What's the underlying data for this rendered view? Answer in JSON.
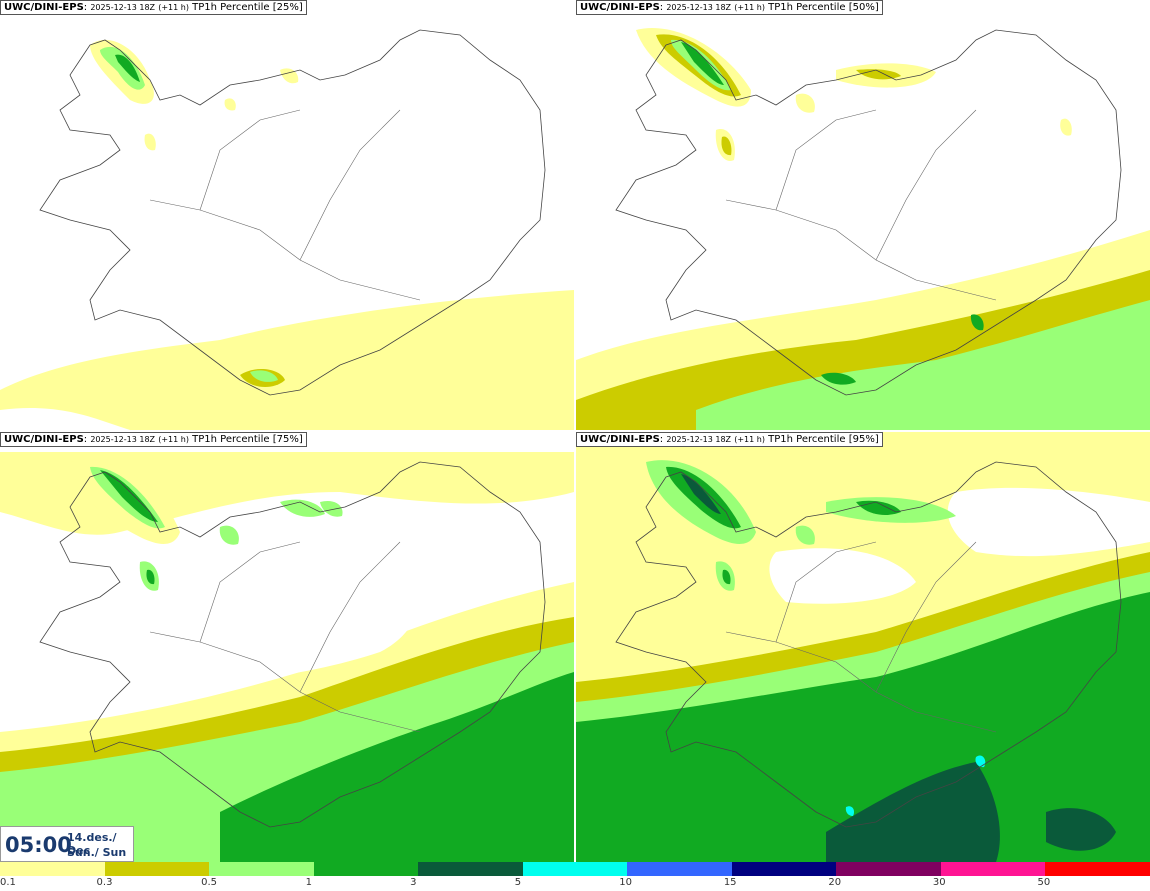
{
  "panels": [
    {
      "model": "UWC/DINI-EPS",
      "run": "2025-12-13 18Z",
      "lead": "(+11 h)",
      "field": "TP1h Percentile",
      "pct": "[25%]"
    },
    {
      "model": "UWC/DINI-EPS",
      "run": "2025-12-13 18Z",
      "lead": "(+11 h)",
      "field": "TP1h Percentile",
      "pct": "[50%]"
    },
    {
      "model": "UWC/DINI-EPS",
      "run": "2025-12-13 18Z",
      "lead": "(+11 h)",
      "field": "TP1h Percentile",
      "pct": "[75%]"
    },
    {
      "model": "UWC/DINI-EPS",
      "run": "2025-12-13 18Z",
      "lead": "(+11 h)",
      "field": "TP1h Percentile",
      "pct": "[95%]"
    }
  ],
  "valid_time": {
    "time": "05:00",
    "date_line1": "14.des./ Dec",
    "date_line2": "Sun./ Sun"
  },
  "legend": {
    "ticks": [
      "0.1",
      "0.3",
      "0.5",
      "1",
      "3",
      "5",
      "10",
      "15",
      "20",
      "30",
      "50"
    ],
    "colors": [
      "#ffff99",
      "#cccc00",
      "#99ff77",
      "#11aa22",
      "#0a5a3a",
      "#00ffee",
      "#3366ff",
      "#000080",
      "#800060",
      "#ff1493",
      "#ff0000"
    ]
  },
  "colors": {
    "level_0_1": "#ffff99",
    "level_0_3": "#cccc00",
    "level_0_5": "#99ff77",
    "level_1": "#11aa22",
    "level_3": "#0a5a3a",
    "level_5": "#00ffee",
    "coastline": "#444444"
  }
}
